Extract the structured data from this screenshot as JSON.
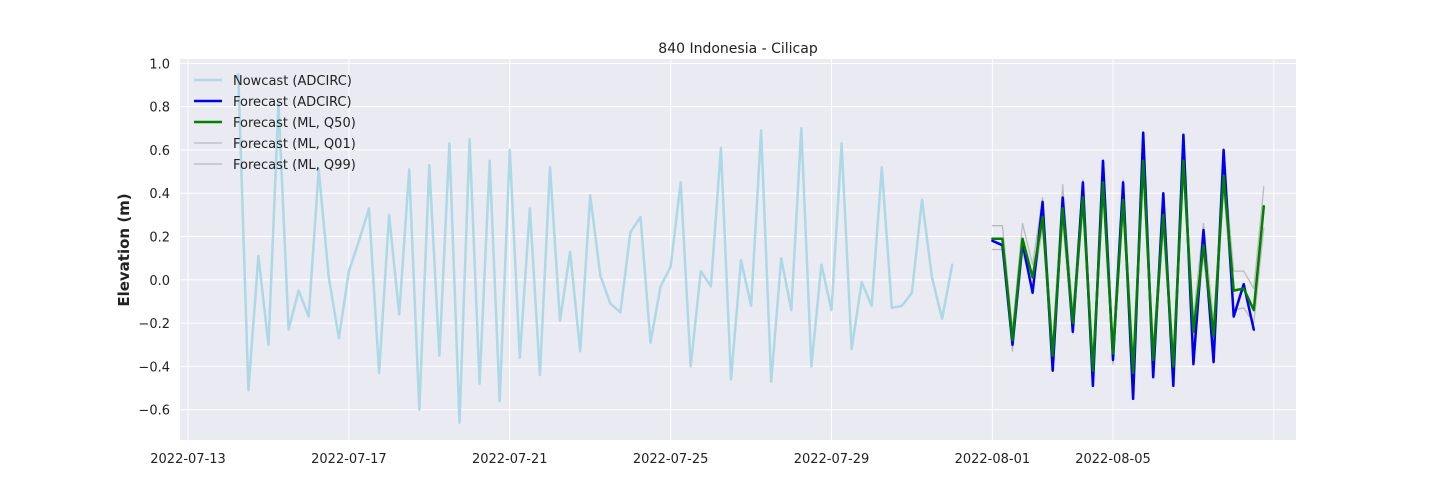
{
  "chart_data": {
    "type": "line",
    "title": "840 Indonesia - Cilicap",
    "xlabel": "",
    "ylabel": "Elevation (m)",
    "x_start": "2022-07-12",
    "xlim_days": [
      0.8,
      28.55
    ],
    "ylim": [
      -0.74,
      1.02
    ],
    "yticks": [
      -0.6,
      -0.4,
      -0.2,
      0.0,
      0.2,
      0.4,
      0.6,
      0.8,
      1.0
    ],
    "ytick_labels": [
      "−0.6",
      "−0.4",
      "−0.2",
      "0.0",
      "0.2",
      "0.4",
      "0.6",
      "0.8",
      "1.0"
    ],
    "xticks_days": [
      1,
      5,
      9,
      13,
      17,
      21,
      24,
      28
    ],
    "xtick_labels": [
      "2022-07-13",
      "2022-07-17",
      "2022-07-21",
      "2022-07-25",
      "2022-07-29",
      "2022-08-01",
      "2022-08-05",
      ""
    ],
    "grid": true,
    "legend_position": "top-left",
    "series": [
      {
        "name": "Nowcast (ADCIRC)",
        "color": "#add8e6",
        "width": 2.5,
        "x_start": 2.25,
        "x_step": 0.25,
        "values": [
          0.95,
          -0.51,
          0.11,
          -0.3,
          0.82,
          -0.23,
          -0.05,
          -0.17,
          0.51,
          0.01,
          -0.27,
          0.04,
          0.18,
          0.33,
          -0.43,
          0.3,
          -0.16,
          0.51,
          -0.6,
          0.53,
          -0.35,
          0.63,
          -0.66,
          0.65,
          -0.48,
          0.55,
          -0.56,
          0.6,
          -0.36,
          0.33,
          -0.44,
          0.52,
          -0.19,
          0.13,
          -0.33,
          0.39,
          0.02,
          -0.11,
          -0.15,
          0.22,
          0.29,
          -0.29,
          -0.03,
          0.06,
          0.45,
          -0.4,
          0.04,
          -0.03,
          0.61,
          -0.46,
          0.09,
          -0.12,
          0.69,
          -0.47,
          0.1,
          -0.14,
          0.7,
          -0.4,
          0.07,
          -0.14,
          0.63,
          -0.32,
          -0.01,
          -0.12,
          0.52,
          -0.13,
          -0.12,
          -0.06,
          0.37,
          0.01,
          -0.18,
          0.07
        ]
      },
      {
        "name": "Forecast (ADCIRC)",
        "color": "#0000ee",
        "width": 2.5,
        "x_start": 21.0,
        "x_step": 0.25,
        "values": [
          0.18,
          0.16,
          -0.3,
          0.17,
          -0.06,
          0.36,
          -0.42,
          0.38,
          -0.24,
          0.45,
          -0.49,
          0.55,
          -0.37,
          0.45,
          -0.55,
          0.68,
          -0.45,
          0.4,
          -0.49,
          0.67,
          -0.39,
          0.23,
          -0.38,
          0.6,
          -0.17,
          -0.02,
          -0.23
        ]
      },
      {
        "name": "Forecast (ML, Q50)",
        "color": "#008000",
        "width": 2.5,
        "x_start": 21.0,
        "x_step": 0.25,
        "values": [
          0.19,
          0.19,
          -0.28,
          0.19,
          0.01,
          0.29,
          -0.35,
          0.33,
          -0.2,
          0.38,
          -0.42,
          0.45,
          -0.34,
          0.37,
          -0.43,
          0.55,
          -0.37,
          0.3,
          -0.4,
          0.55,
          -0.24,
          0.16,
          -0.26,
          0.48,
          -0.05,
          -0.04,
          -0.14,
          0.34
        ]
      },
      {
        "name": "Forecast (ML, Q01)",
        "color": "#bbbbbb",
        "width": 1.3,
        "x_start": 21.0,
        "x_step": 0.25,
        "values": [
          0.14,
          0.14,
          -0.33,
          0.13,
          -0.04,
          0.24,
          -0.41,
          0.27,
          -0.25,
          0.33,
          -0.47,
          0.4,
          -0.39,
          0.32,
          -0.49,
          0.49,
          -0.42,
          0.24,
          -0.45,
          0.49,
          -0.3,
          0.11,
          -0.31,
          0.42,
          -0.14,
          -0.13,
          -0.2,
          0.24
        ]
      },
      {
        "name": "Forecast (ML, Q99)",
        "color": "#bbbbbb",
        "width": 1.3,
        "x_start": 21.0,
        "x_step": 0.25,
        "values": [
          0.25,
          0.25,
          -0.23,
          0.26,
          0.07,
          0.38,
          -0.3,
          0.44,
          -0.15,
          0.46,
          -0.37,
          0.52,
          -0.28,
          0.46,
          -0.37,
          0.62,
          -0.31,
          0.37,
          -0.35,
          0.6,
          -0.18,
          0.26,
          -0.2,
          0.55,
          0.04,
          0.04,
          -0.04,
          0.43
        ]
      }
    ]
  }
}
